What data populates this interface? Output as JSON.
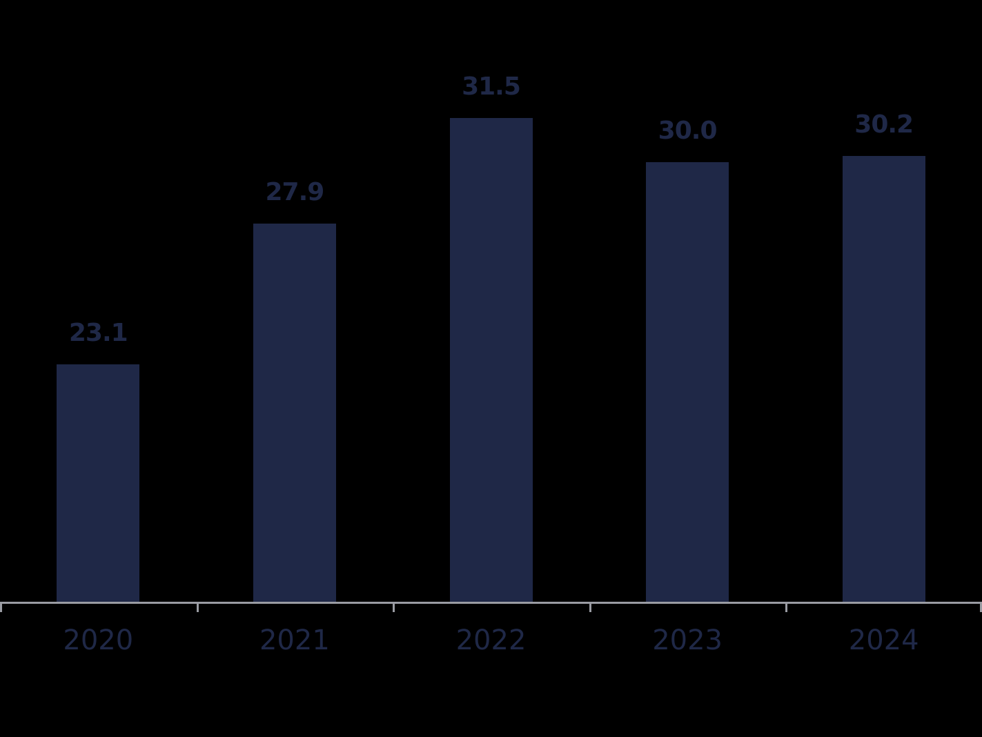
{
  "chart_data": {
    "type": "bar",
    "title": "",
    "xlabel": "",
    "ylabel": "",
    "categories": [
      "2020",
      "2021",
      "2022",
      "2023",
      "2024"
    ],
    "values": [
      23.1,
      27.9,
      31.5,
      30.0,
      30.2
    ],
    "value_labels": [
      "23.1",
      "27.9",
      "31.5",
      "30.0",
      "30.2"
    ],
    "ylim": [
      15,
      35
    ],
    "grid": false,
    "legend": null,
    "colors": {
      "bar": "#1f2847",
      "axis": "#9a9ca3",
      "text": "#1f2847"
    }
  }
}
